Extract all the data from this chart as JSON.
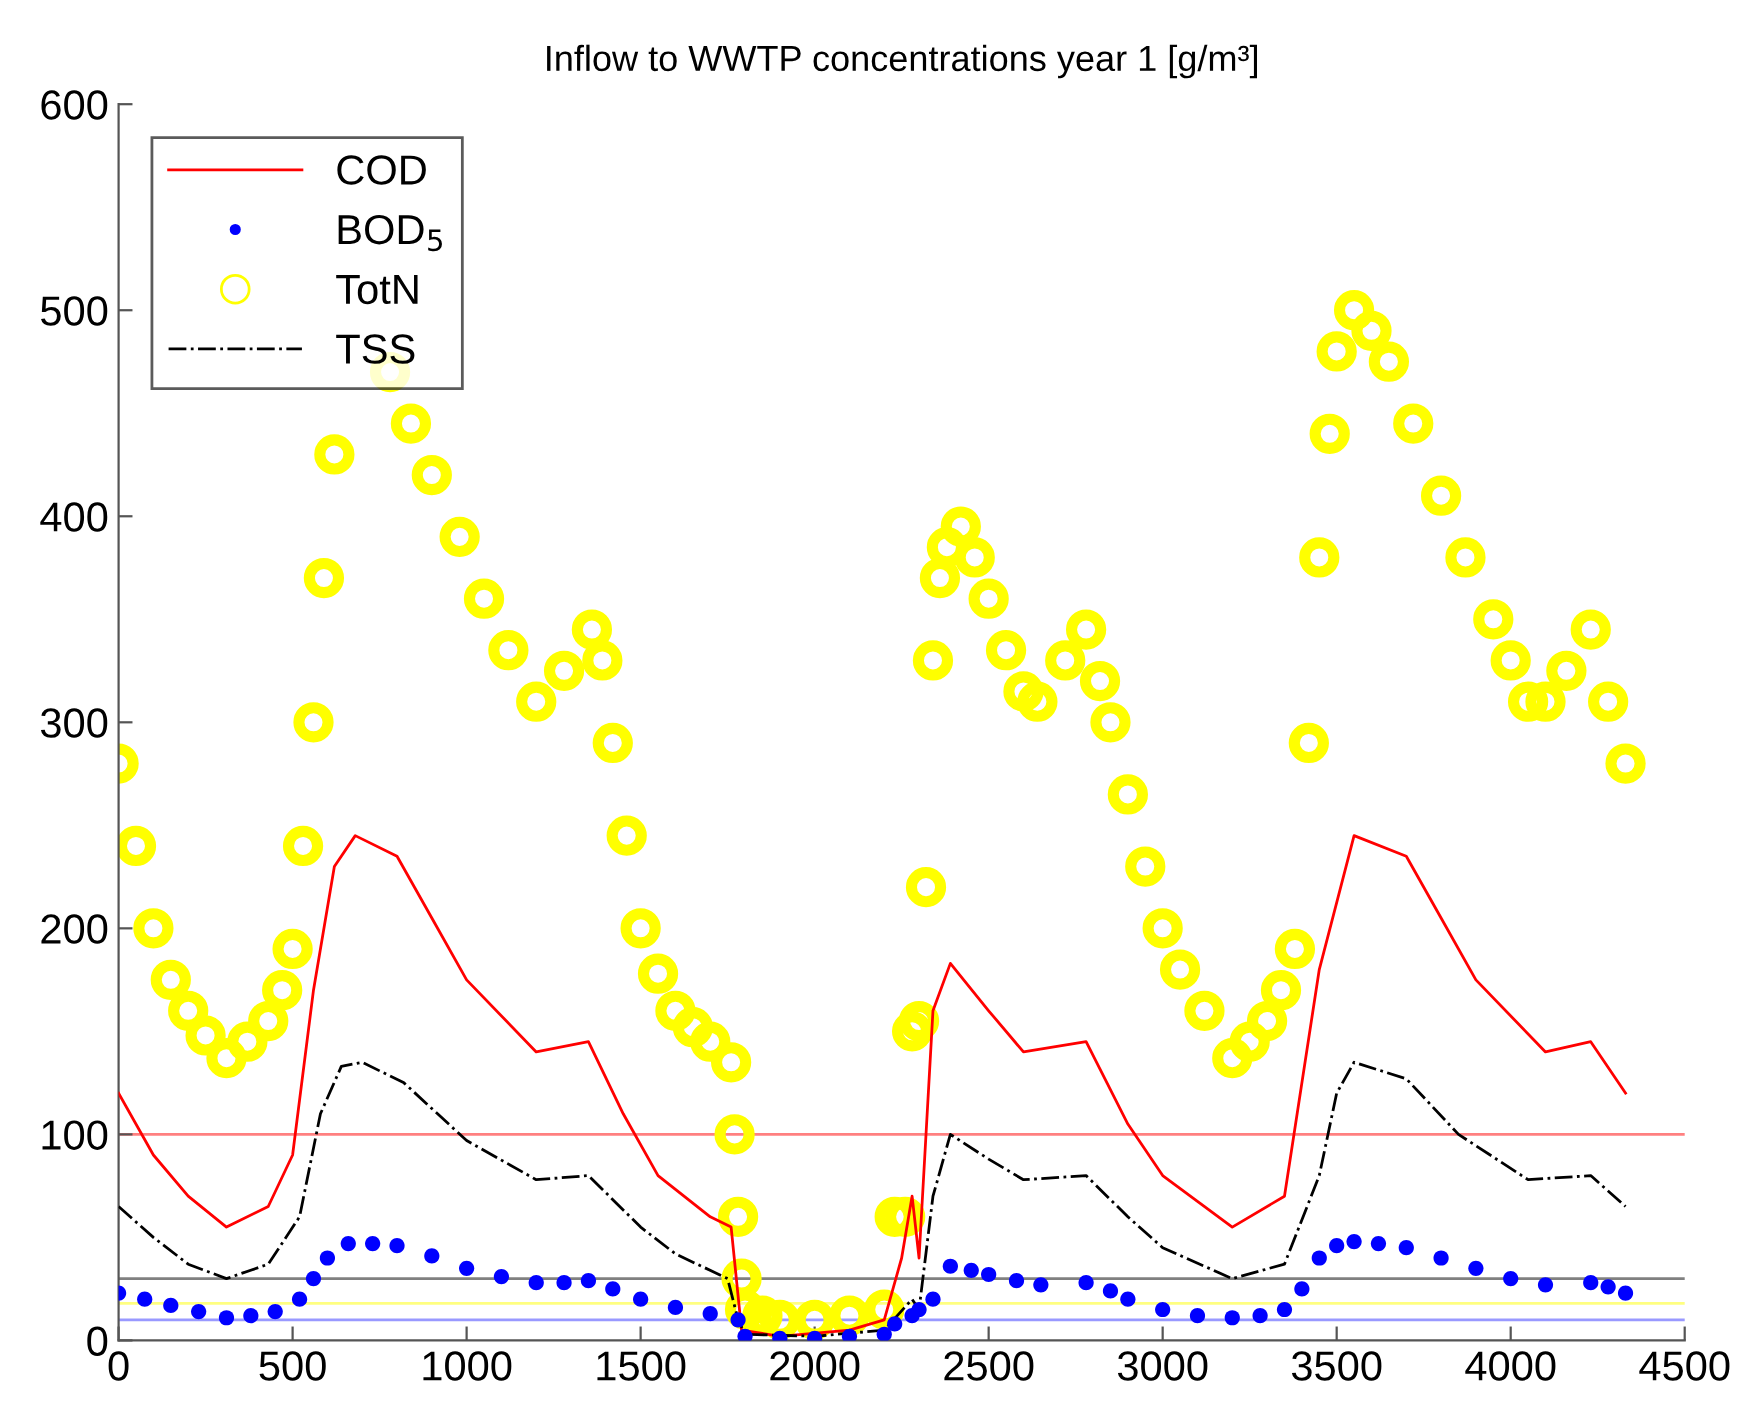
{
  "chart_data": {
    "type": "line",
    "title": "Inflow to WWTP concentrations year 1 [g/m³]",
    "xlim": [
      0,
      4500
    ],
    "xticks": [
      0,
      500,
      1000,
      1500,
      2000,
      2500,
      3000,
      3500,
      4000,
      4500
    ],
    "ylim": [
      0,
      600
    ],
    "yticks": [
      0,
      100,
      200,
      300,
      400,
      500,
      600
    ],
    "grid": false,
    "legend": "top left",
    "series": [
      {
        "name": "COD",
        "color": "#ff0000",
        "line_style": "solid",
        "x": [
          0,
          100,
          200,
          310,
          430,
          500,
          560,
          620,
          680,
          800,
          900,
          1000,
          1200,
          1350,
          1450,
          1550,
          1700,
          1760,
          1790,
          1900,
          2100,
          2200,
          2250,
          2280,
          2300,
          2340,
          2390,
          2500,
          2600,
          2780,
          2900,
          3000,
          3200,
          3350,
          3450,
          3550,
          3700,
          3800,
          3900,
          4100,
          4230,
          4330
        ],
        "values": [
          120,
          90,
          70,
          55,
          65,
          90,
          170,
          230,
          245,
          235,
          205,
          175,
          140,
          145,
          110,
          80,
          60,
          55,
          5,
          2,
          5,
          10,
          40,
          70,
          40,
          160,
          183,
          160,
          140,
          145,
          105,
          80,
          55,
          70,
          180,
          245,
          235,
          205,
          175,
          140,
          145,
          120
        ]
      },
      {
        "name": "BOD$_{5}$",
        "type": "scatter",
        "marker": "circle",
        "color": "#0000ff",
        "x": [
          0,
          75,
          150,
          230,
          310,
          380,
          450,
          520,
          560,
          600,
          660,
          730,
          800,
          900,
          1000,
          1100,
          1200,
          1280,
          1350,
          1420,
          1500,
          1600,
          1700,
          1780,
          1800,
          1900,
          2000,
          2100,
          2200,
          2230,
          2280,
          2300,
          2340,
          2390,
          2450,
          2500,
          2580,
          2650,
          2780,
          2850,
          2900,
          3000,
          3100,
          3200,
          3280,
          3350,
          3400,
          3450,
          3500,
          3550,
          3620,
          3700,
          3800,
          3900,
          4000,
          4100,
          4230,
          4280,
          4330
        ],
        "values": [
          23,
          20,
          17,
          14,
          11,
          12,
          14,
          20,
          30,
          40,
          47,
          47,
          46,
          41,
          35,
          31,
          28,
          28,
          29,
          25,
          20,
          16,
          13,
          10,
          2,
          1,
          1,
          2,
          3,
          8,
          12,
          15,
          20,
          36,
          34,
          32,
          29,
          27,
          28,
          24,
          20,
          15,
          12,
          11,
          12,
          15,
          25,
          40,
          46,
          48,
          47,
          45,
          40,
          35,
          30,
          27,
          28,
          26,
          23
        ]
      },
      {
        "name": "TotN",
        "type": "scatter",
        "marker": "circle",
        "color": "#ffff00",
        "x": [
          0,
          50,
          100,
          150,
          200,
          250,
          310,
          370,
          430,
          470,
          500,
          530,
          560,
          590,
          620,
          660,
          780,
          840,
          900,
          980,
          1050,
          1120,
          1200,
          1280,
          1360,
          1390,
          1420,
          1460,
          1500,
          1550,
          1600,
          1650,
          1700,
          1760,
          1770,
          1780,
          1790,
          1800,
          1850,
          1900,
          2000,
          2100,
          2200,
          2230,
          2260,
          2280,
          2300,
          2320,
          2340,
          2360,
          2380,
          2420,
          2460,
          2500,
          2550,
          2600,
          2640,
          2720,
          2780,
          2820,
          2850,
          2900,
          2950,
          3000,
          3050,
          3120,
          3200,
          3250,
          3300,
          3340,
          3380,
          3420,
          3450,
          3480,
          3500,
          3550,
          3600,
          3650,
          3720,
          3800,
          3870,
          3950,
          4000,
          4050,
          4100,
          4160,
          4230,
          4280,
          4330
        ],
        "values": [
          280,
          240,
          200,
          175,
          160,
          148,
          137,
          145,
          155,
          170,
          190,
          240,
          300,
          370,
          430,
          null,
          470,
          445,
          420,
          390,
          360,
          335,
          310,
          325,
          345,
          330,
          290,
          245,
          200,
          178,
          160,
          152,
          145,
          135,
          100,
          60,
          30,
          15,
          12,
          10,
          10,
          12,
          15,
          60,
          60,
          150,
          155,
          220,
          330,
          370,
          385,
          395,
          380,
          360,
          335,
          315,
          310,
          330,
          345,
          320,
          300,
          265,
          230,
          200,
          180,
          160,
          137,
          145,
          155,
          170,
          190,
          290,
          380,
          440,
          480,
          500,
          490,
          475,
          445,
          410,
          380,
          350,
          330,
          310,
          310,
          325,
          345,
          310,
          280
        ]
      },
      {
        "name": "TSS",
        "color": "#000000",
        "line_style": "dashdot",
        "x": [
          0,
          100,
          200,
          310,
          430,
          520,
          580,
          640,
          700,
          820,
          1000,
          1200,
          1350,
          1500,
          1600,
          1750,
          1780,
          1800,
          2000,
          2200,
          2280,
          2300,
          2340,
          2390,
          2500,
          2600,
          2780,
          2900,
          3000,
          3200,
          3350,
          3450,
          3500,
          3550,
          3700,
          3850,
          4050,
          4230,
          4330
        ],
        "values": [
          65,
          50,
          37,
          30,
          37,
          60,
          110,
          133,
          135,
          125,
          97,
          78,
          80,
          55,
          42,
          30,
          10,
          3,
          2,
          5,
          20,
          15,
          70,
          100,
          88,
          78,
          80,
          60,
          45,
          30,
          37,
          80,
          120,
          135,
          127,
          100,
          78,
          80,
          65
        ]
      }
    ],
    "ref_lines": [
      {
        "axis": "y",
        "value": 100,
        "color": "#ff8080"
      },
      {
        "axis": "y",
        "value": 30,
        "color": "#808080"
      },
      {
        "axis": "y",
        "value": 18,
        "color": "#ffff80"
      },
      {
        "axis": "y",
        "value": 10,
        "color": "#9999ff"
      }
    ]
  }
}
